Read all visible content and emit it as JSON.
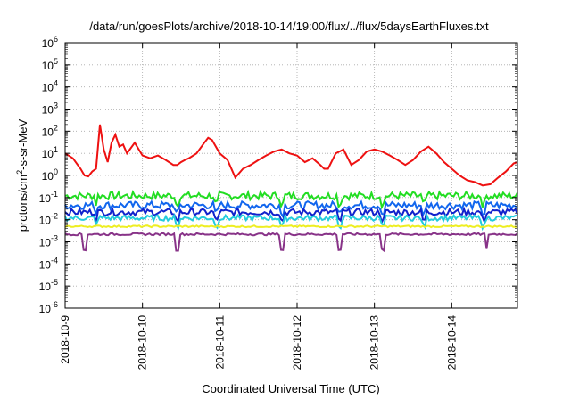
{
  "chart_data": {
    "type": "line",
    "title": "/data/run/goesPlots/archive/2018-10-14/19:00/flux/../flux/5daysEarthFluxes.txt",
    "xlabel": "Coordinated Universal Time (UTC)",
    "ylabel_parts": [
      "protons/cm",
      "2",
      "-s-sr-MeV"
    ],
    "y_scale": "log",
    "ylim_exp": [
      -6,
      6
    ],
    "y_tick_labels": [
      {
        "base": "10",
        "exp": "-6"
      },
      {
        "base": "10",
        "exp": "-5"
      },
      {
        "base": "10",
        "exp": "-4"
      },
      {
        "base": "10",
        "exp": "-3"
      },
      {
        "base": "10",
        "exp": "-2"
      },
      {
        "base": "10",
        "exp": "-1"
      },
      {
        "base": "10",
        "exp": "0"
      },
      {
        "base": "10",
        "exp": "1"
      },
      {
        "base": "10",
        "exp": "2"
      },
      {
        "base": "10",
        "exp": "3"
      },
      {
        "base": "10",
        "exp": "4"
      },
      {
        "base": "10",
        "exp": "5"
      },
      {
        "base": "10",
        "exp": "6"
      }
    ],
    "x_tick_labels": [
      "2018-10-9",
      "2018-10-10",
      "2018-10-11",
      "2018-10-12",
      "2018-10-13",
      "2018-10-14"
    ],
    "x_day_range": [
      9,
      14.85
    ],
    "grid": true,
    "legend": "none",
    "series": [
      {
        "color": "#ee1111",
        "x": [
          9.0,
          9.1,
          9.2,
          9.25,
          9.3,
          9.35,
          9.4,
          9.45,
          9.5,
          9.55,
          9.6,
          9.65,
          9.7,
          9.75,
          9.8,
          9.9,
          10.0,
          10.1,
          10.2,
          10.3,
          10.4,
          10.45,
          10.5,
          10.55,
          10.6,
          10.7,
          10.8,
          10.85,
          10.9,
          11.0,
          11.1,
          11.2,
          11.3,
          11.4,
          11.5,
          11.6,
          11.7,
          11.8,
          11.9,
          12.0,
          12.1,
          12.2,
          12.3,
          12.35,
          12.4,
          12.5,
          12.6,
          12.7,
          12.8,
          12.9,
          13.0,
          13.1,
          13.2,
          13.3,
          13.4,
          13.5,
          13.6,
          13.7,
          13.8,
          13.9,
          14.0,
          14.1,
          14.2,
          14.3,
          14.4,
          14.5,
          14.6,
          14.7,
          14.8,
          14.85
        ],
        "y": [
          10,
          6,
          2,
          1,
          0.9,
          1.5,
          2,
          200,
          15,
          4,
          30,
          70,
          20,
          25,
          10,
          30,
          8,
          6,
          8,
          5,
          3,
          3,
          4,
          5,
          6,
          10,
          30,
          50,
          40,
          10,
          5,
          0.8,
          2,
          3,
          5,
          8,
          12,
          15,
          10,
          8,
          4,
          6,
          3,
          2,
          2,
          10,
          15,
          3,
          5,
          12,
          15,
          12,
          8,
          5,
          3,
          5,
          12,
          20,
          10,
          4,
          2,
          1,
          0.6,
          0.5,
          0.35,
          0.4,
          0.8,
          1.5,
          3.5,
          4
        ]
      }
    ],
    "bands": [
      {
        "color": "#22dd22",
        "level": 0.12,
        "jitter": 0.35,
        "spikes": [
          9.4,
          10.45,
          10.95,
          11.8,
          12.55,
          13.1,
          13.65,
          14.4
        ]
      },
      {
        "color": "#1166ee",
        "level": 0.045,
        "jitter": 0.35,
        "spikes": [
          9.4,
          10.45,
          10.95,
          11.8,
          12.55,
          13.1,
          13.65,
          14.4
        ]
      },
      {
        "color": "#1122cc",
        "level": 0.022,
        "jitter": 0.3,
        "spikes": [
          9.4,
          10.45,
          10.95,
          11.8,
          12.55,
          13.1,
          13.65,
          14.4
        ]
      },
      {
        "color": "#22ccdd",
        "level": 0.012,
        "jitter": 0.25,
        "spikes": [
          9.4,
          10.45,
          10.95,
          11.8,
          12.55,
          13.1,
          13.65,
          14.4
        ]
      },
      {
        "color": "#eeee22",
        "level": 0.005,
        "jitter": 0.08,
        "spikes": []
      },
      {
        "color": "#883388",
        "level": 0.0022,
        "jitter": 0.1,
        "spikes": [
          9.25,
          10.45,
          11.8,
          12.55,
          13.1,
          14.45
        ]
      }
    ]
  }
}
